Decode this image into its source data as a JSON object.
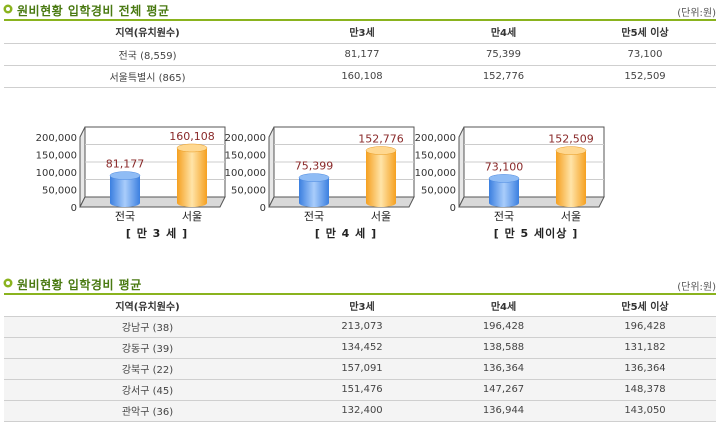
{
  "section1": {
    "title": "원비현황 입학경비 전체 평균",
    "unit": "(단위:원)",
    "headers": [
      "지역(유치원수)",
      "만3세",
      "만4세",
      "만5세 이상"
    ],
    "rows": [
      [
        "전국 (8,559)",
        "81,177",
        "75,399",
        "73,100"
      ],
      [
        "서울특별시 (865)",
        "160,108",
        "152,776",
        "152,509"
      ]
    ]
  },
  "chart_data": [
    {
      "type": "bar",
      "categories": [
        "전국",
        "서울"
      ],
      "values": [
        81177,
        160108
      ],
      "value_labels": [
        "81,177",
        "160,108"
      ],
      "caption": "[ 만 3 세 ]",
      "yticks": [
        "200,000",
        "150,000",
        "100,000",
        "50,000",
        "0"
      ],
      "ylim": [
        0,
        200000
      ]
    },
    {
      "type": "bar",
      "categories": [
        "전국",
        "서울"
      ],
      "values": [
        75399,
        152776
      ],
      "value_labels": [
        "75,399",
        "152,776"
      ],
      "caption": "[ 만 4 세 ]",
      "yticks": [
        "200,000",
        "150,000",
        "100,000",
        "50,000",
        "0"
      ],
      "ylim": [
        0,
        200000
      ]
    },
    {
      "type": "bar",
      "categories": [
        "전국",
        "서울"
      ],
      "values": [
        73100,
        152509
      ],
      "value_labels": [
        "73,100",
        "152,509"
      ],
      "caption": "[ 만 5 세이상 ]",
      "yticks": [
        "200,000",
        "150,000",
        "100,000",
        "50,000",
        "0"
      ],
      "ylim": [
        0,
        200000
      ]
    }
  ],
  "colors": {
    "accent": "#4a7a12",
    "line": "#8ab31e",
    "blue_bar": "#5b9cf0",
    "orange_bar": "#f7b54a",
    "value_label": "#8a2a2a"
  },
  "section2": {
    "title": "원비현황 입학경비 평균",
    "unit": "(단위:원)",
    "headers": [
      "지역(유치원수)",
      "만3세",
      "만4세",
      "만5세 이상"
    ],
    "rows": [
      [
        "강남구 (38)",
        "213,073",
        "196,428",
        "196,428"
      ],
      [
        "강동구 (39)",
        "134,452",
        "138,588",
        "131,182"
      ],
      [
        "강북구 (22)",
        "157,091",
        "136,364",
        "136,364"
      ],
      [
        "강서구 (45)",
        "151,476",
        "147,267",
        "148,378"
      ],
      [
        "관악구 (36)",
        "132,400",
        "136,944",
        "143,050"
      ]
    ]
  }
}
